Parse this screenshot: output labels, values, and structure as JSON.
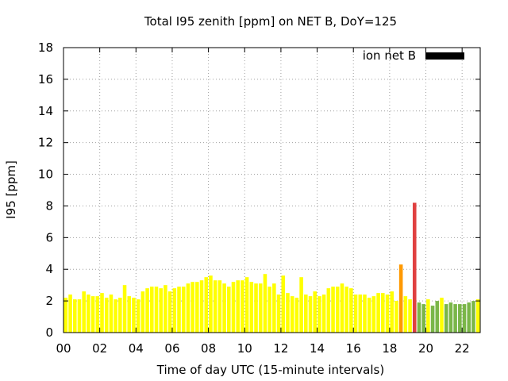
{
  "chart_data": {
    "type": "bar",
    "title": "Total I95 zenith [ppm] on NET B, DoY=125",
    "xlabel": "Time of day UTC (15-minute intervals)",
    "ylabel": "I95 [ppm]",
    "xlim": [
      0,
      23
    ],
    "ylim": [
      0,
      18
    ],
    "x_tick_values": [
      0,
      2,
      4,
      6,
      8,
      10,
      12,
      14,
      16,
      18,
      20,
      22
    ],
    "x_tick_labels": [
      "00",
      "02",
      "04",
      "06",
      "08",
      "10",
      "12",
      "14",
      "16",
      "18",
      "20",
      "22"
    ],
    "y_ticks": [
      0,
      2,
      4,
      6,
      8,
      10,
      12,
      14,
      16,
      18
    ],
    "grid": true,
    "legend": {
      "placement": "top-right",
      "label": "ion net B",
      "color": "#000000"
    },
    "bar_width_hours": 0.2,
    "colors": {
      "low": "#ffff00",
      "good": "#7ab648",
      "medium": "#ff9900",
      "high": "#e04040"
    },
    "series": [
      {
        "x": [
          0.125,
          0.375,
          0.625,
          0.875,
          1.125,
          1.375,
          1.625,
          1.875,
          2.125,
          2.375,
          2.625,
          2.875,
          3.125,
          3.375,
          3.625,
          3.875,
          4.125,
          4.375,
          4.625,
          4.875,
          5.125,
          5.375,
          5.625,
          5.875,
          6.125,
          6.375,
          6.625,
          6.875,
          7.125,
          7.375,
          7.625,
          7.875,
          8.125,
          8.375,
          8.625,
          8.875,
          9.125,
          9.375,
          9.625,
          9.875,
          10.125,
          10.375,
          10.625,
          10.875,
          11.125,
          11.375,
          11.625,
          11.875,
          12.125,
          12.375,
          12.625,
          12.875,
          13.125,
          13.375,
          13.625,
          13.875,
          14.125,
          14.375,
          14.625,
          14.875,
          15.125,
          15.375,
          15.625,
          15.875,
          16.125,
          16.375,
          16.625,
          16.875,
          17.125,
          17.375,
          17.625,
          17.875,
          18.125,
          18.375,
          18.625,
          18.875,
          19.125,
          19.375,
          19.625,
          19.875,
          20.125,
          20.375,
          20.625,
          20.875,
          21.125,
          21.375,
          21.625,
          21.875,
          22.125,
          22.375,
          22.625,
          22.875
        ],
        "values": [
          2.2,
          2.4,
          2.1,
          2.1,
          2.6,
          2.4,
          2.3,
          2.3,
          2.5,
          2.2,
          2.4,
          2.1,
          2.2,
          3.0,
          2.3,
          2.2,
          2.1,
          2.6,
          2.8,
          2.9,
          2.9,
          2.8,
          3.0,
          2.6,
          2.8,
          2.9,
          2.9,
          3.1,
          3.2,
          3.2,
          3.3,
          3.5,
          3.6,
          3.3,
          3.3,
          3.1,
          2.9,
          3.2,
          3.3,
          3.3,
          3.5,
          3.2,
          3.1,
          3.1,
          3.7,
          2.9,
          3.1,
          2.4,
          3.6,
          2.5,
          2.3,
          2.2,
          3.5,
          2.4,
          2.3,
          2.6,
          2.3,
          2.4,
          2.8,
          2.9,
          2.9,
          3.1,
          2.9,
          2.8,
          2.4,
          2.4,
          2.4,
          2.2,
          2.3,
          2.5,
          2.5,
          2.4,
          2.6,
          2.0,
          4.3,
          2.3,
          2.1,
          8.2,
          1.9,
          1.8,
          2.1,
          1.7,
          2.0,
          2.2,
          1.8,
          1.9,
          1.8,
          1.8,
          1.8,
          1.9,
          2.0,
          2.1
        ],
        "levels": [
          "low",
          "low",
          "low",
          "low",
          "low",
          "low",
          "low",
          "low",
          "low",
          "low",
          "low",
          "low",
          "low",
          "low",
          "low",
          "low",
          "low",
          "low",
          "low",
          "low",
          "low",
          "low",
          "low",
          "low",
          "low",
          "low",
          "low",
          "low",
          "low",
          "low",
          "low",
          "low",
          "low",
          "low",
          "low",
          "low",
          "low",
          "low",
          "low",
          "low",
          "low",
          "low",
          "low",
          "low",
          "low",
          "low",
          "low",
          "low",
          "low",
          "low",
          "low",
          "low",
          "low",
          "low",
          "low",
          "low",
          "low",
          "low",
          "low",
          "low",
          "low",
          "low",
          "low",
          "low",
          "low",
          "low",
          "low",
          "low",
          "low",
          "low",
          "low",
          "low",
          "low",
          "low",
          "medium",
          "low",
          "low",
          "high",
          "good",
          "good",
          "low",
          "good",
          "good",
          "low",
          "good",
          "good",
          "good",
          "good",
          "good",
          "good",
          "good",
          "low"
        ]
      }
    ]
  }
}
